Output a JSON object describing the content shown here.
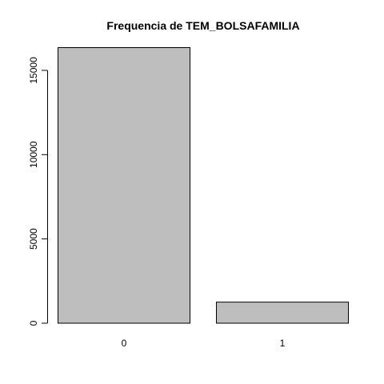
{
  "chart_data": {
    "type": "bar",
    "title": "Frequencia de TEM_BOLSAFAMILIA",
    "xlabel": "",
    "ylabel": "",
    "categories": [
      "0",
      "1"
    ],
    "values": [
      16350,
      1250
    ],
    "ylim": [
      0,
      16350
    ],
    "yticks": [
      0,
      5000,
      10000,
      15000
    ],
    "ytick_labels": [
      "0",
      "5000",
      "10000",
      "15000"
    ],
    "grid": false,
    "legend": "none",
    "bar_fill": "#bebebe",
    "bar_stroke": "#000000"
  }
}
